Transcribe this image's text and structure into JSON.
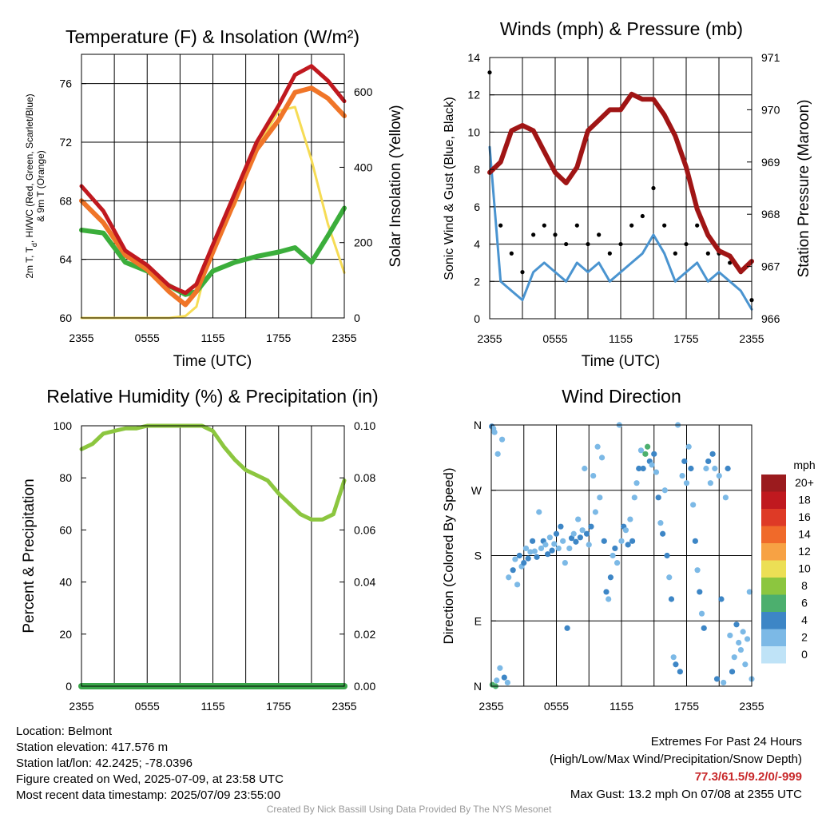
{
  "meta": {
    "time_ticks": [
      "2355",
      "0555",
      "1155",
      "1755",
      "2355"
    ],
    "colors": {
      "temp": "#c0191f",
      "dewpoint": "#3bae3b",
      "ninem": "#f07528",
      "insolation": "#f6dc55",
      "wind": "#4a94d0",
      "gust": "#000000",
      "pressure": "#a01515",
      "rh": "#8cc63f",
      "precip": "#3aa54a"
    }
  },
  "info": {
    "location": "Location: Belmont",
    "elevation": "Station elevation: 417.576 m",
    "latlon": "Station lat/lon: 42.2425; -78.0396",
    "created": "Figure created on Wed, 2025-07-09, at 23:58 UTC",
    "recent": "Most recent data timestamp: 2025/07/09 23:55:00"
  },
  "extremes": {
    "title": "Extremes For Past 24 Hours",
    "subtitle": "(High/Low/Max Wind/Precipitation/Snow Depth)",
    "values": "77.3/61.5/9.2/0/-999",
    "gust": "Max Gust: 13.2 mph On 07/08 at 2355 UTC"
  },
  "credit": "Created By Nick Bassill Using Data Provided By The NYS Mesonet",
  "chart_data": [
    {
      "type": "line",
      "title": "Temperature (F) & Insolation (W/m²)",
      "xlabel": "Time (UTC)",
      "ylabel_left_line1": "2m T, T",
      "ylabel_left_sub": "d",
      "ylabel_left_line1b": ", HI/WC (Red, Green, Scarlet/Blue)",
      "ylabel_left_line2": "& 9m T (Orange)",
      "ylabel_right": "Solar Insolation (Yellow)",
      "x_hours": [
        0,
        2,
        4,
        6,
        8,
        9.5,
        10.5,
        12,
        14,
        16,
        18,
        19.5,
        21,
        22.5,
        24
      ],
      "ylim": [
        60,
        78
      ],
      "ylim_right": [
        0,
        700
      ],
      "yticks": [
        60,
        64,
        68,
        72,
        76
      ],
      "yticks_right": [
        0,
        200,
        400,
        600
      ],
      "series": [
        {
          "name": "2m T",
          "values": [
            69,
            67.3,
            64.6,
            63.6,
            62.2,
            61.7,
            62.3,
            65.0,
            68.5,
            72.0,
            74.5,
            76.6,
            77.2,
            76.2,
            74.8
          ]
        },
        {
          "name": "9m T",
          "values": [
            68,
            66.5,
            64.3,
            63.3,
            61.8,
            60.9,
            61.8,
            64.5,
            68.0,
            71.5,
            73.5,
            75.4,
            75.7,
            75.0,
            73.8
          ]
        },
        {
          "name": "T_d",
          "values": [
            66,
            65.8,
            63.8,
            63.2,
            62.2,
            61.6,
            61.8,
            63.2,
            63.8,
            64.2,
            64.5,
            64.8,
            63.8,
            65.6,
            67.5
          ]
        },
        {
          "name": "Insolation",
          "values": [
            0,
            0,
            0,
            0,
            0,
            5,
            30,
            200,
            300,
            450,
            550,
            560,
            420,
            250,
            120
          ]
        }
      ]
    },
    {
      "type": "line",
      "title": "Winds (mph) & Pressure (mb)",
      "xlabel": "Time (UTC)",
      "ylabel": "Sonic Wind & Gust (Blue, Black)",
      "ylabel_right": "Station Pressure (Maroon)",
      "x_hours": [
        0,
        1,
        2,
        3,
        4,
        5,
        6,
        7,
        8,
        9,
        10,
        11,
        12,
        13,
        14,
        15,
        16,
        17,
        18,
        19,
        20,
        21,
        22,
        23,
        24
      ],
      "ylim": [
        0,
        14
      ],
      "ylim_right": [
        966,
        971
      ],
      "yticks": [
        0,
        2,
        4,
        6,
        8,
        10,
        12,
        14
      ],
      "yticks_right": [
        966,
        967,
        968,
        969,
        970,
        971
      ],
      "series": [
        {
          "name": "Sonic Wind",
          "values": [
            9.2,
            2.0,
            1.5,
            1.0,
            2.5,
            3.0,
            2.5,
            2.0,
            3.0,
            2.5,
            3.0,
            2.0,
            2.5,
            3.0,
            3.5,
            4.5,
            3.5,
            2.0,
            2.5,
            3.0,
            2.0,
            2.5,
            2.0,
            1.5,
            0.5
          ]
        },
        {
          "name": "Gust",
          "values": [
            13.2,
            5.0,
            3.5,
            2.5,
            4.5,
            5.0,
            4.5,
            4.0,
            5.0,
            4.0,
            4.5,
            3.5,
            4.0,
            5.0,
            5.5,
            7.0,
            5.0,
            3.5,
            4.0,
            5.0,
            3.5,
            3.5,
            3.0,
            2.5,
            1.0
          ]
        },
        {
          "name": "Pressure",
          "values": [
            968.8,
            969.0,
            969.6,
            969.7,
            969.6,
            969.2,
            968.8,
            968.6,
            968.9,
            969.6,
            969.8,
            970.0,
            970.0,
            970.3,
            970.2,
            970.2,
            969.9,
            969.5,
            968.9,
            968.1,
            967.6,
            967.3,
            967.2,
            966.9,
            967.1
          ]
        }
      ]
    },
    {
      "type": "line",
      "title": "Relative Humidity (%) & Precipitation (in)",
      "ylabel": "Percent & Precipitation",
      "x_hours": [
        0,
        1,
        2,
        3,
        4,
        5,
        6,
        7,
        8,
        9,
        10,
        11,
        12,
        13,
        14,
        15,
        16,
        17,
        18,
        19,
        20,
        21,
        22,
        23,
        24
      ],
      "ylim": [
        0,
        100
      ],
      "ylim_right": [
        0,
        0.1
      ],
      "yticks": [
        0,
        20,
        40,
        60,
        80,
        100
      ],
      "yticks_right": [
        "0.00",
        "0.02",
        "0.04",
        "0.06",
        "0.08",
        "0.10"
      ],
      "series": [
        {
          "name": "RH",
          "values": [
            91,
            93,
            97,
            98,
            99,
            99,
            100,
            100,
            100,
            100,
            100,
            100,
            98,
            92,
            87,
            83,
            81,
            79,
            74,
            70,
            66,
            64,
            64,
            66,
            79
          ]
        },
        {
          "name": "Precipitation",
          "values": [
            0,
            0,
            0,
            0,
            0,
            0,
            0,
            0,
            0,
            0,
            0,
            0,
            0,
            0,
            0,
            0,
            0,
            0,
            0,
            0,
            0,
            0,
            0,
            0,
            0
          ]
        }
      ]
    },
    {
      "type": "scatter",
      "title": "Wind Direction",
      "ylabel": "Direction (Colored By Speed)",
      "yticks": [
        "N",
        "E",
        "S",
        "W",
        "N"
      ],
      "ylim": [
        0,
        360
      ],
      "legend_title": "mph",
      "legend_labels": [
        "20+",
        "18",
        "16",
        "14",
        "12",
        "10",
        "8",
        "6",
        "4",
        "2",
        "0"
      ],
      "legend_colors": [
        "#9b1b1e",
        "#c0191f",
        "#de3a26",
        "#f06a2a",
        "#f7a244",
        "#ecdf55",
        "#8cc63f",
        "#4caf6e",
        "#3d86c6",
        "#7cb9e6",
        "#bfe3f7"
      ],
      "points": [
        [
          0.05,
          358,
          3
        ],
        [
          0.1,
          2,
          6
        ],
        [
          0.2,
          355,
          2
        ],
        [
          0.3,
          350,
          1
        ],
        [
          0.4,
          0,
          5
        ],
        [
          0.5,
          8,
          2
        ],
        [
          0.6,
          320,
          1
        ],
        [
          0.8,
          25,
          2
        ],
        [
          1.0,
          340,
          1
        ],
        [
          1.2,
          12,
          3
        ],
        [
          1.5,
          5,
          1
        ],
        [
          1.6,
          150,
          2
        ],
        [
          2.0,
          160,
          3
        ],
        [
          2.2,
          175,
          2
        ],
        [
          2.4,
          140,
          1
        ],
        [
          2.6,
          180,
          3
        ],
        [
          2.8,
          165,
          2
        ],
        [
          3.0,
          170,
          3
        ],
        [
          3.2,
          190,
          2
        ],
        [
          3.4,
          176,
          3
        ],
        [
          3.6,
          185,
          2
        ],
        [
          3.8,
          200,
          3
        ],
        [
          4.0,
          186,
          2
        ],
        [
          4.2,
          178,
          3
        ],
        [
          4.4,
          240,
          1
        ],
        [
          4.6,
          190,
          2
        ],
        [
          4.8,
          200,
          3
        ],
        [
          5.0,
          195,
          2
        ],
        [
          5.2,
          182,
          3
        ],
        [
          5.4,
          205,
          2
        ],
        [
          5.6,
          187,
          3
        ],
        [
          5.8,
          196,
          2
        ],
        [
          6.0,
          210,
          3
        ],
        [
          6.2,
          190,
          2
        ],
        [
          6.4,
          220,
          3
        ],
        [
          6.6,
          200,
          2
        ],
        [
          6.8,
          170,
          1
        ],
        [
          7.0,
          80,
          3
        ],
        [
          7.2,
          190,
          2
        ],
        [
          7.4,
          204,
          3
        ],
        [
          7.6,
          210,
          2
        ],
        [
          7.8,
          199,
          3
        ],
        [
          8.0,
          230,
          2
        ],
        [
          8.2,
          205,
          3
        ],
        [
          8.4,
          215,
          2
        ],
        [
          8.6,
          300,
          1
        ],
        [
          8.8,
          210,
          3
        ],
        [
          9.0,
          195,
          2
        ],
        [
          9.2,
          220,
          3
        ],
        [
          9.4,
          290,
          1
        ],
        [
          9.6,
          240,
          2
        ],
        [
          9.8,
          330,
          1
        ],
        [
          10.0,
          260,
          2
        ],
        [
          10.2,
          315,
          1
        ],
        [
          10.4,
          200,
          3
        ],
        [
          10.6,
          130,
          3
        ],
        [
          10.8,
          120,
          2
        ],
        [
          11.0,
          150,
          3
        ],
        [
          11.2,
          180,
          2
        ],
        [
          11.4,
          190,
          3
        ],
        [
          11.6,
          170,
          2
        ],
        [
          11.8,
          360,
          1
        ],
        [
          12.0,
          200,
          2
        ],
        [
          12.2,
          220,
          3
        ],
        [
          12.4,
          215,
          2
        ],
        [
          12.6,
          195,
          3
        ],
        [
          12.8,
          230,
          2
        ],
        [
          13.0,
          200,
          3
        ],
        [
          13.2,
          260,
          1
        ],
        [
          13.4,
          280,
          2
        ],
        [
          13.6,
          300,
          3
        ],
        [
          13.8,
          325,
          2
        ],
        [
          14.0,
          300,
          3
        ],
        [
          14.2,
          320,
          6
        ],
        [
          14.4,
          330,
          5
        ],
        [
          14.6,
          310,
          3
        ],
        [
          14.8,
          305,
          2
        ],
        [
          15.0,
          320,
          3
        ],
        [
          15.2,
          295,
          2
        ],
        [
          15.4,
          260,
          3
        ],
        [
          15.6,
          225,
          2
        ],
        [
          15.8,
          210,
          3
        ],
        [
          16.0,
          270,
          2
        ],
        [
          16.2,
          180,
          3
        ],
        [
          16.4,
          150,
          2
        ],
        [
          16.6,
          120,
          3
        ],
        [
          16.8,
          40,
          2
        ],
        [
          17.0,
          30,
          3
        ],
        [
          17.2,
          360,
          1
        ],
        [
          17.4,
          20,
          3
        ],
        [
          17.6,
          290,
          2
        ],
        [
          17.8,
          310,
          3
        ],
        [
          18.0,
          280,
          2
        ],
        [
          18.2,
          330,
          1
        ],
        [
          18.4,
          300,
          3
        ],
        [
          18.6,
          250,
          2
        ],
        [
          18.8,
          200,
          3
        ],
        [
          19.0,
          160,
          2
        ],
        [
          19.2,
          130,
          3
        ],
        [
          19.4,
          100,
          2
        ],
        [
          19.6,
          80,
          3
        ],
        [
          19.8,
          300,
          2
        ],
        [
          20.0,
          310,
          3
        ],
        [
          20.2,
          280,
          2
        ],
        [
          20.4,
          320,
          3
        ],
        [
          20.6,
          300,
          2
        ],
        [
          20.8,
          10,
          3
        ],
        [
          21.0,
          290,
          2
        ],
        [
          21.2,
          120,
          3
        ],
        [
          21.4,
          5,
          1
        ],
        [
          21.6,
          260,
          2
        ],
        [
          21.8,
          300,
          3
        ],
        [
          22.0,
          70,
          2
        ],
        [
          22.2,
          20,
          3
        ],
        [
          22.4,
          40,
          2
        ],
        [
          22.6,
          85,
          3
        ],
        [
          22.8,
          60,
          2
        ],
        [
          23.0,
          50,
          1
        ],
        [
          23.2,
          75,
          2
        ],
        [
          23.4,
          30,
          1
        ],
        [
          23.6,
          65,
          2
        ],
        [
          23.8,
          130,
          1
        ],
        [
          24.0,
          10,
          1
        ]
      ]
    }
  ]
}
